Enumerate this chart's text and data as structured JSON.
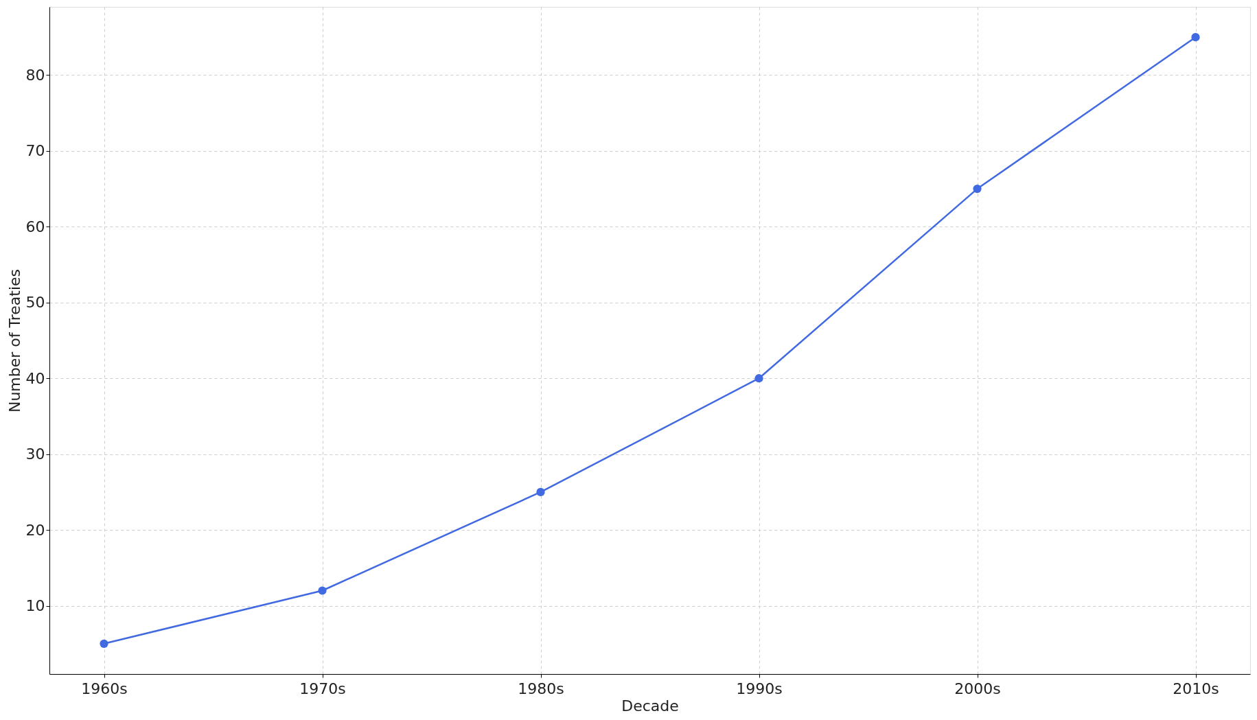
{
  "chart_data": {
    "type": "line",
    "xlabel": "Decade",
    "ylabel": "Number of Treaties",
    "categories": [
      "1960s",
      "1970s",
      "1980s",
      "1990s",
      "2000s",
      "2010s"
    ],
    "series": [
      {
        "color": "#4169e1",
        "values": [
          5,
          12,
          25,
          40,
          65,
          85
        ]
      }
    ],
    "ylim": [
      1,
      89
    ],
    "yticks": [
      10,
      20,
      30,
      40,
      50,
      60,
      70,
      80
    ],
    "grid": true,
    "marker": "circle",
    "line_style": "solid"
  }
}
